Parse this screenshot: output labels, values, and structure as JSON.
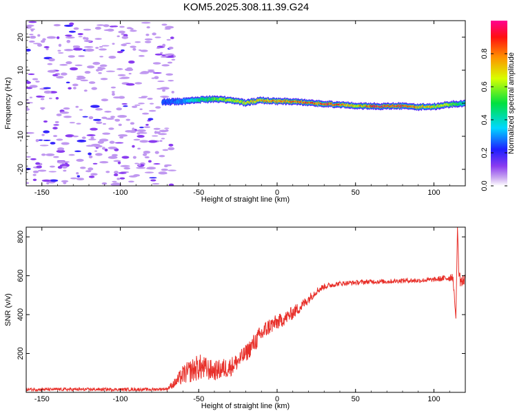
{
  "chart_data": [
    {
      "type": "heatmap",
      "title": "KOM5.2025.308.11.39.G24",
      "xlabel": "Height of straight line (km)",
      "ylabel": "Frequency (Hz)",
      "xlim": [
        -160,
        120
      ],
      "ylim": [
        -25,
        25
      ],
      "xticks": [
        -150,
        -100,
        -50,
        0,
        50,
        100
      ],
      "yticks": [
        -20,
        -10,
        0,
        10,
        20
      ],
      "colorbar": {
        "label": "Normalized spectral amplitude",
        "range": [
          0.0,
          1.0
        ],
        "ticks": [
          0.0,
          0.2,
          0.4,
          0.6,
          0.8
        ]
      },
      "signal_ridge": {
        "x": [
          -73,
          -60,
          -50,
          -40,
          -30,
          -20,
          -10,
          0,
          10,
          20,
          30,
          40,
          50,
          60,
          70,
          80,
          90,
          100,
          110,
          120
        ],
        "frequency": [
          0.3,
          0.6,
          1.0,
          1.3,
          1.0,
          0.1,
          0.9,
          0.6,
          0.5,
          0.2,
          -0.2,
          -0.4,
          -0.7,
          -0.9,
          -0.9,
          -0.8,
          -1.1,
          -1.0,
          -0.3,
          0.0
        ],
        "amplitude": [
          0.25,
          0.3,
          0.45,
          0.55,
          0.65,
          0.7,
          0.75,
          0.8,
          0.85,
          0.88,
          0.9,
          0.88,
          0.7,
          0.9,
          0.92,
          0.9,
          0.8,
          0.7,
          0.6,
          0.4
        ]
      },
      "noise_region_x": [
        -160,
        -70
      ]
    },
    {
      "type": "line",
      "title": "",
      "xlabel": "Height of straight line (km)",
      "ylabel": "SNR (v/v)",
      "xlim": [
        -160,
        120
      ],
      "ylim": [
        0,
        850
      ],
      "xticks": [
        -150,
        -100,
        -50,
        0,
        50,
        100
      ],
      "yticks": [
        200,
        400,
        600,
        800
      ],
      "series": [
        {
          "name": "SNR",
          "color": "#e8302a",
          "x": [
            -160,
            -140,
            -120,
            -100,
            -80,
            -70,
            -65,
            -60,
            -55,
            -50,
            -45,
            -40,
            -35,
            -30,
            -25,
            -20,
            -15,
            -10,
            -5,
            0,
            5,
            10,
            15,
            20,
            25,
            30,
            40,
            50,
            60,
            70,
            80,
            90,
            100,
            105,
            110,
            112,
            114,
            115,
            116,
            118,
            120
          ],
          "y": [
            15,
            15,
            15,
            15,
            15,
            18,
            50,
            90,
            110,
            130,
            120,
            110,
            120,
            130,
            160,
            200,
            250,
            300,
            340,
            360,
            380,
            410,
            440,
            480,
            520,
            545,
            560,
            565,
            570,
            570,
            575,
            575,
            580,
            585,
            590,
            600,
            380,
            850,
            600,
            560,
            600
          ],
          "noise_amplitude": [
            8,
            8,
            8,
            8,
            8,
            8,
            25,
            50,
            60,
            70,
            60,
            50,
            55,
            50,
            45,
            45,
            50,
            50,
            45,
            40,
            35,
            35,
            30,
            25,
            20,
            15,
            12,
            12,
            12,
            12,
            12,
            12,
            12,
            15,
            20,
            30,
            0,
            0,
            40,
            40,
            30
          ]
        }
      ]
    }
  ]
}
